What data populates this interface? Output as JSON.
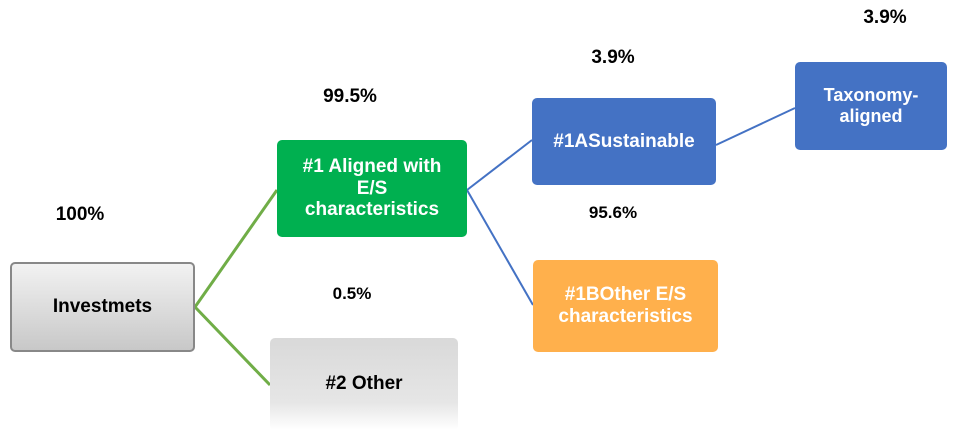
{
  "nodes": [
    {
      "lines": [
        "Investmets"
      ],
      "share": "100%"
    },
    {
      "lines": [
        "#1 Aligned with",
        "E/S",
        "characteristics"
      ],
      "share": "99.5%"
    },
    {
      "lines": [
        "#2 Other"
      ],
      "share": "0.5%"
    },
    {
      "lines": [
        "#1ASustainable"
      ],
      "share": "3.9%"
    },
    {
      "lines": [
        "#1BOther E/S",
        "characteristics"
      ],
      "share": "95.6%"
    },
    {
      "lines": [
        "Taxonomy-",
        "aligned"
      ],
      "share": "3.9%"
    }
  ]
}
